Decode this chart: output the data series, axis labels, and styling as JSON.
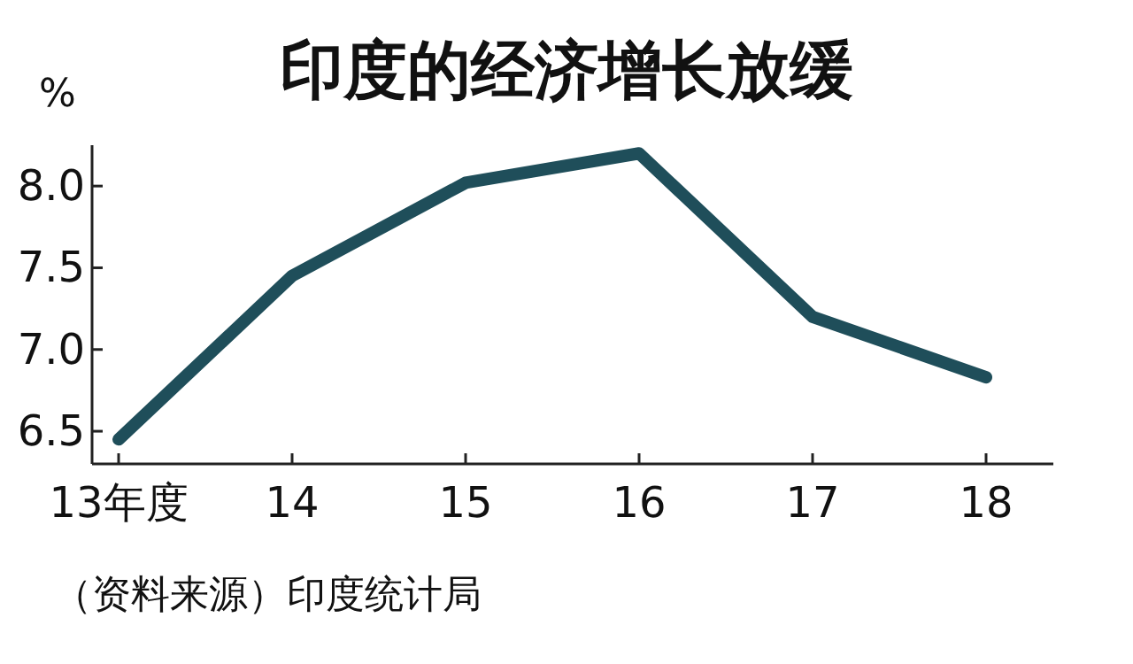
{
  "chart_data": {
    "type": "line",
    "title": "印度的经济增长放缓",
    "ylabel": "%",
    "categories": [
      "13年度",
      "14",
      "15",
      "16",
      "17",
      "18"
    ],
    "series": [
      {
        "color": "#1f4e5a",
        "values": [
          6.45,
          7.45,
          8.02,
          8.2,
          7.2,
          6.83
        ]
      }
    ],
    "ylim": [
      6.3,
      8.25
    ],
    "yticks": [
      6.5,
      {
        "value": 7,
        "label": "7.0"
      },
      7.5,
      {
        "value": 8,
        "label": "8.0"
      }
    ],
    "annotations": [
      "（资料来源）印度统计局"
    ]
  }
}
